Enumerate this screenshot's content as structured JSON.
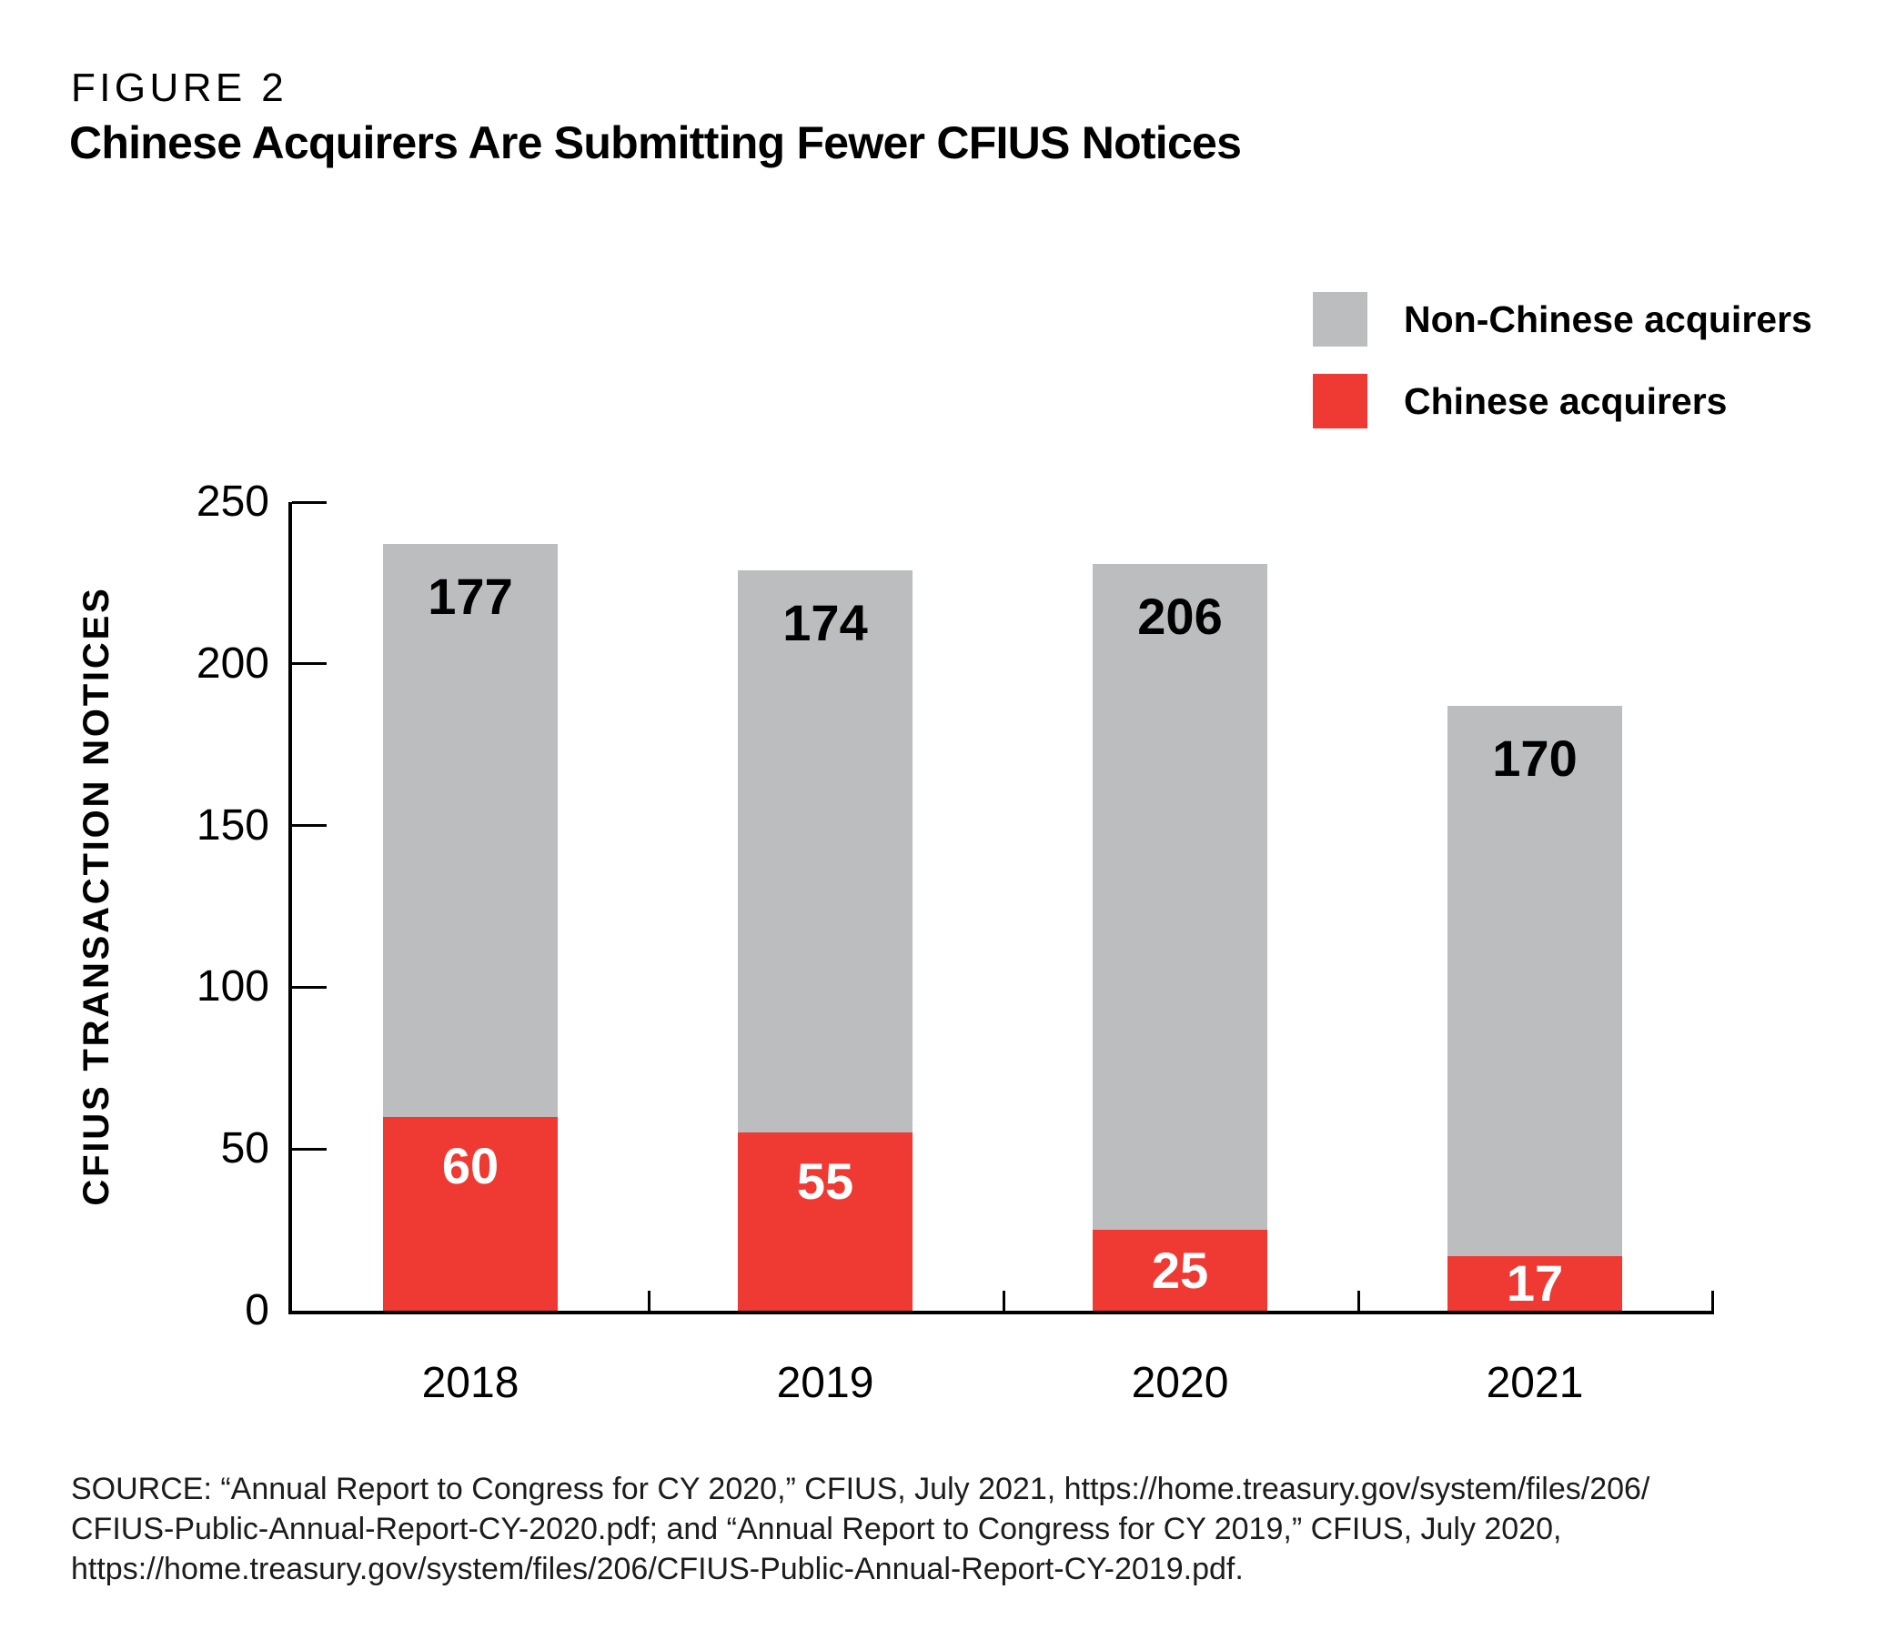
{
  "figure_label": "FIGURE 2",
  "title": "Chinese Acquirers Are Submitting Fewer CFIUS Notices",
  "legend": {
    "items": [
      {
        "label": "Non-Chinese acquirers",
        "color": "#bcbdbe"
      },
      {
        "label": "Chinese acquirers",
        "color": "#ee3a33"
      }
    ]
  },
  "chart_data": {
    "type": "bar",
    "stacked": true,
    "title": "Chinese Acquirers Are Submitting Fewer CFIUS Notices",
    "categories": [
      "2018",
      "2019",
      "2020",
      "2021"
    ],
    "series": [
      {
        "name": "Chinese acquirers",
        "color": "#ee3a33",
        "label_color": "#ffffff",
        "values": [
          60,
          55,
          25,
          17
        ]
      },
      {
        "name": "Non-Chinese acquirers",
        "color": "#bcbdbe",
        "label_color": "#000000",
        "values": [
          177,
          174,
          206,
          170
        ]
      }
    ],
    "totals": [
      237,
      229,
      231,
      187
    ],
    "xlabel": "",
    "ylabel": "CFIUS TRANSACTION NOTICES",
    "ylim": [
      0,
      250
    ],
    "yticks": [
      0,
      50,
      100,
      150,
      200,
      250
    ],
    "grid": false,
    "legend_position": "top-right",
    "axis_color": "#000000"
  },
  "source": {
    "lines": [
      "SOURCE: “Annual Report to Congress for CY 2020,” CFIUS, July 2021, https://home.treasury.gov/system/files/206/",
      "CFIUS-Public-Annual-Report-CY-2020.pdf; and “Annual Report to Congress for CY 2019,” CFIUS, July 2020,",
      "https://home.treasury.gov/system/files/206/CFIUS-Public-Annual-Report-CY-2019.pdf."
    ]
  }
}
